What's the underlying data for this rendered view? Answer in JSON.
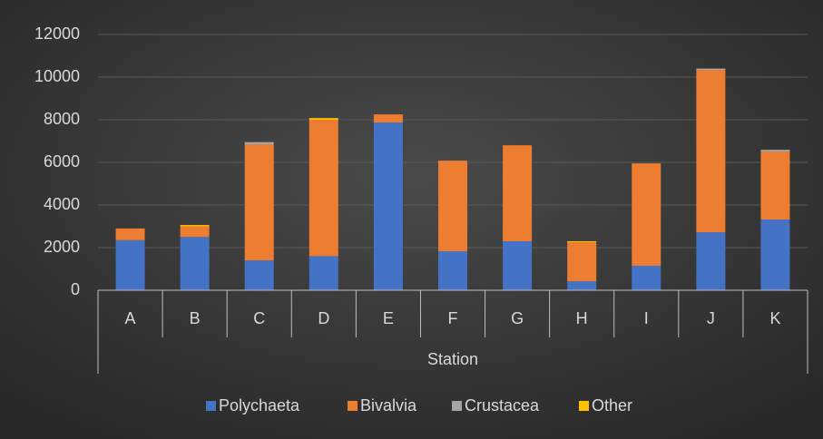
{
  "chart_data": {
    "type": "stacked_bar",
    "x_label": "Station",
    "categories": [
      "A",
      "B",
      "C",
      "D",
      "E",
      "F",
      "G",
      "H",
      "I",
      "J",
      "K"
    ],
    "series": [
      {
        "name": "Polychaeta",
        "color": "#4472c4",
        "values": [
          2350,
          2500,
          1400,
          1600,
          7870,
          1830,
          2300,
          420,
          1150,
          2720,
          3320
        ]
      },
      {
        "name": "Bivalvia",
        "color": "#ed7d31",
        "values": [
          550,
          500,
          5450,
          6400,
          380,
          4250,
          4500,
          1830,
          4800,
          7620,
          3190
        ]
      },
      {
        "name": "Crustacea",
        "color": "#a5a5a5",
        "values": [
          0,
          0,
          100,
          0,
          0,
          0,
          0,
          0,
          0,
          60,
          80
        ]
      },
      {
        "name": "Other",
        "color": "#ffc000",
        "values": [
          0,
          60,
          0,
          80,
          0,
          0,
          0,
          50,
          0,
          0,
          0
        ]
      }
    ],
    "ylim": [
      0,
      12000
    ],
    "yticks": [
      0,
      2000,
      4000,
      6000,
      8000,
      10000,
      12000
    ],
    "grid": true,
    "legend": "bottom"
  }
}
